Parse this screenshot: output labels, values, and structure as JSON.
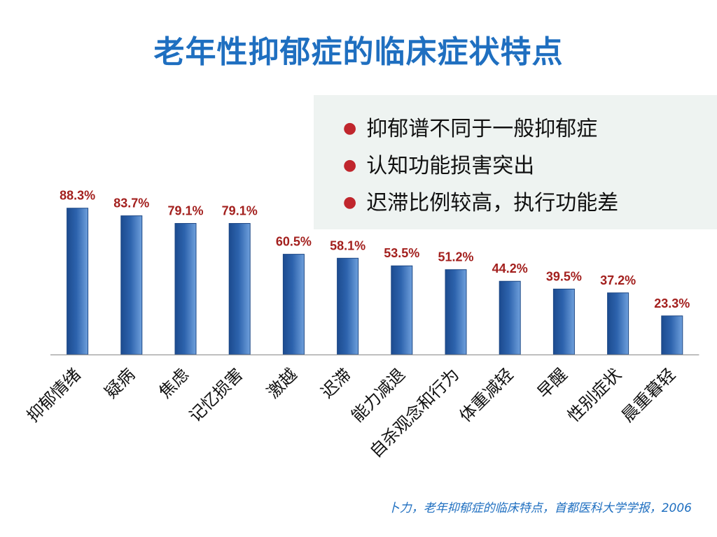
{
  "slide": {
    "title": "老年性抑郁症的临床症状特点",
    "notes": [
      "抑郁谱不同于一般抑郁症",
      "认知功能损害突出",
      "迟滞比例较高，执行功能差"
    ],
    "source": "卜力，老年抑郁症的临床特点，首都医科大学学报，2006"
  },
  "colors": {
    "title": "#1f6fc0",
    "bullet": "#c0262d",
    "bar": "#2d63ad",
    "data_label": "#a3201e",
    "note_background": "#eef3f1"
  },
  "chart_data": {
    "type": "bar",
    "title": "",
    "xlabel": "",
    "ylabel": "",
    "categories": [
      "抑郁情绪",
      "疑病",
      "焦虑",
      "记忆损害",
      "激越",
      "迟滞",
      "能力减退",
      "自杀观念和行为",
      "体重减轻",
      "早醒",
      "性别症状",
      "晨重暮轻"
    ],
    "values": [
      88.3,
      83.7,
      79.1,
      79.1,
      60.5,
      58.1,
      53.5,
      51.2,
      44.2,
      39.5,
      37.2,
      23.3
    ],
    "value_labels": [
      "88.3%",
      "83.7%",
      "79.1%",
      "79.1%",
      "60.5%",
      "58.1%",
      "53.5%",
      "51.2%",
      "44.2%",
      "39.5%",
      "37.2%",
      "23.3%"
    ],
    "ylim": [
      0,
      100
    ],
    "grid": false,
    "legend": "none"
  }
}
